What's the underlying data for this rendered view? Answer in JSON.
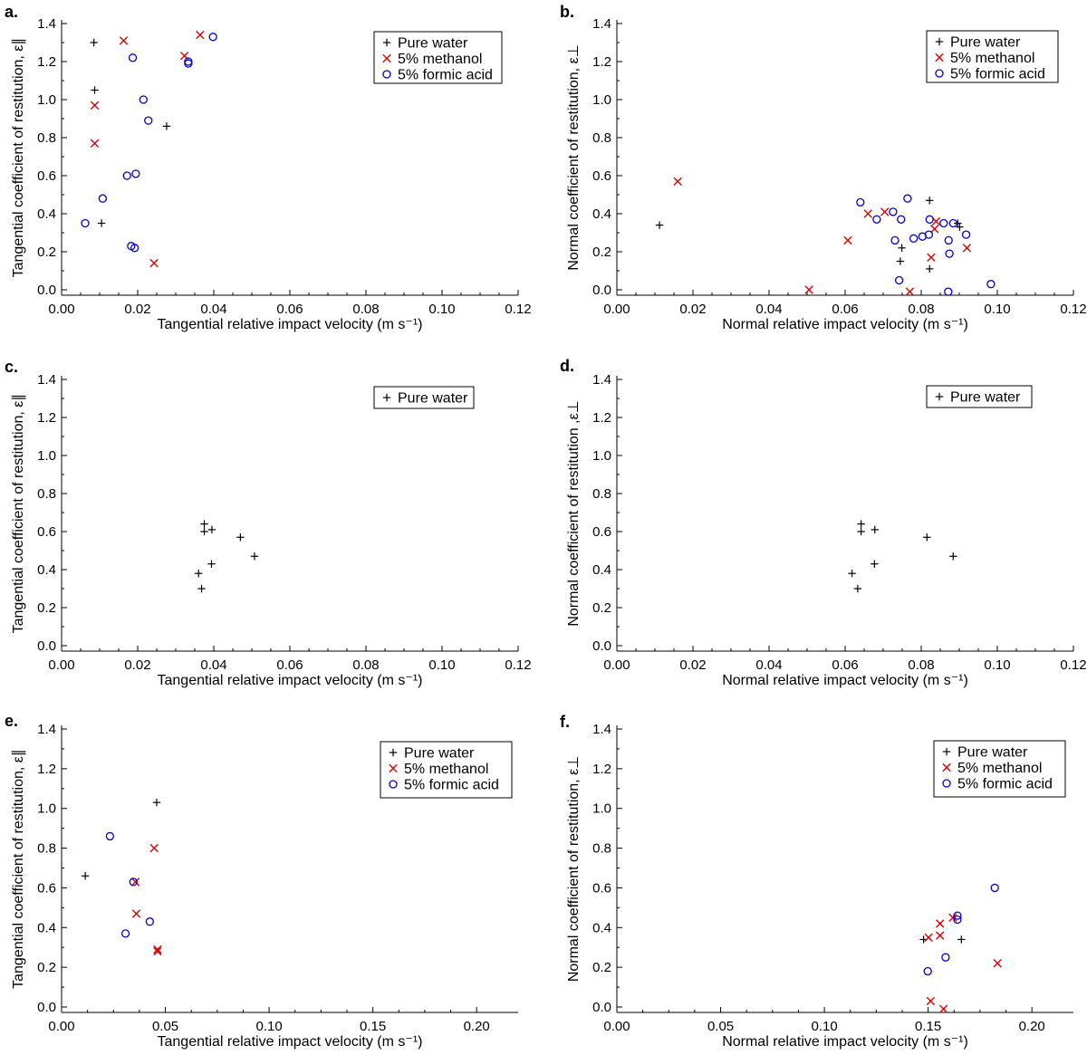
{
  "legend_labels": {
    "water": "Pure water",
    "meth": "5% methanol",
    "form": "5% formic acid"
  },
  "colors": {
    "water": "#000000",
    "meth": "#dd0000",
    "form": "#0000cc"
  },
  "chart_data": [
    {
      "panel": "a.",
      "type": "scatter",
      "xlabel": "Tangential relative impact velocity (m s⁻¹)",
      "ylabel": "Tangential coefficient of restitution, ε∥",
      "xlim": [
        0,
        0.12
      ],
      "ylim": [
        0,
        1.4
      ],
      "xticks": [
        0,
        0.02,
        0.04,
        0.06,
        0.08,
        0.1,
        0.12
      ],
      "xticklabels": [
        "0.00",
        "0.02",
        "0.04",
        "0.06",
        "0.08",
        "0.10",
        "0.12"
      ],
      "yticks": [
        0.0,
        0.2,
        0.4,
        0.6,
        0.8,
        1.0,
        1.2,
        1.4
      ],
      "yticklabels": [
        "0.0",
        "0.2",
        "0.4",
        "0.6",
        "0.8",
        "1.0",
        "1.2",
        "1.4"
      ],
      "legend": [
        "water",
        "meth",
        "form"
      ],
      "series": [
        {
          "key": "water",
          "x": [
            0.0085,
            0.0087,
            0.0105,
            0.0276
          ],
          "y": [
            1.3,
            1.05,
            0.35,
            0.86
          ]
        },
        {
          "key": "meth",
          "x": [
            0.0163,
            0.0087,
            0.0087,
            0.0364,
            0.0323,
            0.0243
          ],
          "y": [
            1.31,
            0.97,
            0.77,
            1.34,
            1.23,
            0.14
          ]
        },
        {
          "key": "form",
          "x": [
            0.0187,
            0.0398,
            0.0333,
            0.0333,
            0.0215,
            0.0228,
            0.0172,
            0.0195,
            0.0108,
            0.0062,
            0.0183,
            0.0192
          ],
          "y": [
            1.22,
            1.33,
            1.2,
            1.19,
            1.0,
            0.89,
            0.6,
            0.61,
            0.48,
            0.35,
            0.23,
            0.22
          ]
        }
      ]
    },
    {
      "panel": "b.",
      "type": "scatter",
      "xlabel": "Normal relative impact velocity (m s⁻¹)",
      "ylabel": "Normal coefficient of restitution, ε⊥",
      "xlim": [
        0,
        0.12
      ],
      "ylim": [
        0,
        1.4
      ],
      "xticks": [
        0,
        0.02,
        0.04,
        0.06,
        0.08,
        0.1,
        0.12
      ],
      "xticklabels": [
        "0.00",
        "0.02",
        "0.04",
        "0.06",
        "0.08",
        "0.10",
        "0.12"
      ],
      "yticks": [
        0.0,
        0.2,
        0.4,
        0.6,
        0.8,
        1.0,
        1.2,
        1.4
      ],
      "yticklabels": [
        "0.0",
        "0.2",
        "0.4",
        "0.6",
        "0.8",
        "1.0",
        "1.2",
        "1.4"
      ],
      "legend": [
        "water",
        "meth",
        "form"
      ],
      "series": [
        {
          "key": "water",
          "x": [
            0.0112,
            0.0822,
            0.0896,
            0.0749,
            0.0745,
            0.0822,
            0.0901
          ],
          "y": [
            0.34,
            0.47,
            0.35,
            0.22,
            0.15,
            0.11,
            0.33
          ]
        },
        {
          "key": "meth",
          "x": [
            0.016,
            0.0607,
            0.066,
            0.0704,
            0.0839,
            0.0835,
            0.0826,
            0.092,
            0.0505,
            0.077
          ],
          "y": [
            0.57,
            0.26,
            0.4,
            0.41,
            0.36,
            0.32,
            0.17,
            0.22,
            0.0,
            -0.01
          ]
        },
        {
          "key": "form",
          "x": [
            0.064,
            0.0683,
            0.0726,
            0.0764,
            0.0747,
            0.0822,
            0.0859,
            0.0884,
            0.0918,
            0.078,
            0.0803,
            0.082,
            0.0872,
            0.0874,
            0.0742,
            0.0871,
            0.0983,
            0.0731
          ],
          "y": [
            0.46,
            0.37,
            0.41,
            0.48,
            0.37,
            0.37,
            0.35,
            0.35,
            0.29,
            0.27,
            0.28,
            0.29,
            0.26,
            0.19,
            0.05,
            -0.01,
            0.03,
            0.26
          ]
        }
      ]
    },
    {
      "panel": "c.",
      "type": "scatter",
      "xlabel": "Tangential relative impact velocity (m s⁻¹)",
      "ylabel": "Tangential coefficient of restitution, ε∥",
      "xlim": [
        0,
        0.12
      ],
      "ylim": [
        0,
        1.4
      ],
      "xticks": [
        0,
        0.02,
        0.04,
        0.06,
        0.08,
        0.1,
        0.12
      ],
      "xticklabels": [
        "0.00",
        "0.02",
        "0.04",
        "0.06",
        "0.08",
        "0.10",
        "0.12"
      ],
      "yticks": [
        0.0,
        0.2,
        0.4,
        0.6,
        0.8,
        1.0,
        1.2,
        1.4
      ],
      "yticklabels": [
        "0.0",
        "0.2",
        "0.4",
        "0.6",
        "0.8",
        "1.0",
        "1.2",
        "1.4"
      ],
      "legend": [
        "water"
      ],
      "series": [
        {
          "key": "water",
          "x": [
            0.0375,
            0.0375,
            0.0395,
            0.047,
            0.0507,
            0.0394,
            0.036,
            0.0368
          ],
          "y": [
            0.64,
            0.6,
            0.61,
            0.57,
            0.47,
            0.43,
            0.38,
            0.3
          ]
        }
      ]
    },
    {
      "panel": "d.",
      "type": "scatter",
      "xlabel": "Normal relative impact velocity (m s⁻¹)",
      "ylabel": "Normal coefficient of restitution ,ε⊥",
      "xlim": [
        0,
        0.12
      ],
      "ylim": [
        0,
        1.4
      ],
      "xticks": [
        0,
        0.02,
        0.04,
        0.06,
        0.08,
        0.1,
        0.12
      ],
      "xticklabels": [
        "0.00",
        "0.02",
        "0.04",
        "0.06",
        "0.08",
        "0.10",
        "0.12"
      ],
      "yticks": [
        0.0,
        0.2,
        0.4,
        0.6,
        0.8,
        1.0,
        1.2,
        1.4
      ],
      "yticklabels": [
        "0.0",
        "0.2",
        "0.4",
        "0.6",
        "0.8",
        "1.0",
        "1.2",
        "1.4"
      ],
      "legend": [
        "water"
      ],
      "series": [
        {
          "key": "water",
          "x": [
            0.0642,
            0.0642,
            0.0678,
            0.0815,
            0.0884,
            0.0677,
            0.0618,
            0.0633
          ],
          "y": [
            0.64,
            0.6,
            0.61,
            0.57,
            0.47,
            0.43,
            0.38,
            0.3
          ]
        }
      ]
    },
    {
      "panel": "e.",
      "type": "scatter",
      "xlabel": "Tangential relative impact velocity (m s⁻¹)",
      "ylabel": "Tangential coefficient of restitution, ε∥",
      "xlim": [
        0,
        0.22
      ],
      "ylim": [
        0,
        1.4
      ],
      "xticks": [
        0,
        0.05,
        0.1,
        0.15,
        0.2
      ],
      "xticklabels": [
        "0.00",
        "0.05",
        "0.10",
        "0.15",
        "0.20"
      ],
      "yticks": [
        0.0,
        0.2,
        0.4,
        0.6,
        0.8,
        1.0,
        1.2,
        1.4
      ],
      "yticklabels": [
        "0.0",
        "0.2",
        "0.4",
        "0.6",
        "0.8",
        "1.0",
        "1.2",
        "1.4"
      ],
      "legend": [
        "water",
        "meth",
        "form"
      ],
      "series": [
        {
          "key": "water",
          "x": [
            0.0114,
            0.0458
          ],
          "y": [
            0.66,
            1.03
          ]
        },
        {
          "key": "meth",
          "x": [
            0.0446,
            0.0356,
            0.036,
            0.0462,
            0.0462
          ],
          "y": [
            0.8,
            0.63,
            0.47,
            0.29,
            0.28
          ]
        },
        {
          "key": "form",
          "x": [
            0.0233,
            0.0346,
            0.0425,
            0.0308
          ],
          "y": [
            0.86,
            0.63,
            0.43,
            0.37
          ]
        }
      ]
    },
    {
      "panel": "f.",
      "type": "scatter",
      "xlabel": "Normal relative impact velocity (m s⁻¹)",
      "ylabel": "Normal coefficient of restitution, ε⊥",
      "xlim": [
        0,
        0.22
      ],
      "ylim": [
        0,
        1.4
      ],
      "xticks": [
        0,
        0.05,
        0.1,
        0.15,
        0.2
      ],
      "xticklabels": [
        "0.00",
        "0.05",
        "0.10",
        "0.15",
        "0.20"
      ],
      "yticks": [
        0.0,
        0.2,
        0.4,
        0.6,
        0.8,
        1.0,
        1.2,
        1.4
      ],
      "yticklabels": [
        "0.0",
        "0.2",
        "0.4",
        "0.6",
        "0.8",
        "1.0",
        "1.2",
        "1.4"
      ],
      "legend": [
        "water",
        "meth",
        "form"
      ],
      "series": [
        {
          "key": "water",
          "x": [
            0.1478,
            0.166
          ],
          "y": [
            0.34,
            0.34
          ]
        },
        {
          "key": "meth",
          "x": [
            0.1502,
            0.1557,
            0.1557,
            0.1619,
            0.1834,
            0.1512,
            0.1574
          ],
          "y": [
            0.35,
            0.42,
            0.36,
            0.45,
            0.22,
            0.03,
            -0.01
          ]
        },
        {
          "key": "form",
          "x": [
            0.1821,
            0.1641,
            0.1641,
            0.1584,
            0.1498
          ],
          "y": [
            0.6,
            0.46,
            0.44,
            0.25,
            0.18
          ]
        }
      ]
    }
  ]
}
